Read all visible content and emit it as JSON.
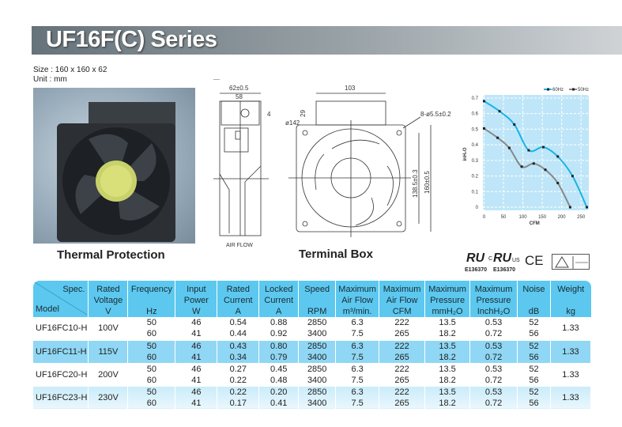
{
  "header": {
    "title": "UF16F(C) Series",
    "size": "Size : 160 x 160 x 62",
    "unit": "Unit : mm"
  },
  "photo": {
    "caption": "Thermal Protection"
  },
  "drawing": {
    "caption": "Terminal Box",
    "air_flow": "AIR FLOW",
    "dims": {
      "depth": "62±0.5",
      "depth_inner": "58",
      "flange": "4",
      "box_width": "103",
      "box_height": "29",
      "diameter": "ø142",
      "holes": "8-ø5.5±0.2",
      "hole_pitch": "138.5±0.3",
      "size": "160±0.5"
    }
  },
  "certifications": {
    "ul_number": "E136370",
    "cul_number": "E136370",
    "cul_prefix": "C",
    "cul_suffix": "US",
    "ce": "CE"
  },
  "chart_data": {
    "type": "line",
    "xlabel": "CFM",
    "ylabel": "inH₂O",
    "xlim": [
      0,
      265
    ],
    "ylim": [
      0,
      0.7
    ],
    "xticks": [
      0,
      50,
      100,
      150,
      200,
      250
    ],
    "yticks": [
      0.0,
      0.1,
      0.2,
      0.3,
      0.4,
      0.5,
      0.6,
      0.7
    ],
    "grid": true,
    "legend": "top-right",
    "series": [
      {
        "name": "60Hz",
        "color": "#18b4e8",
        "x": [
          0,
          40,
          78,
          115,
          153,
          190,
          228,
          265
        ],
        "y": [
          0.68,
          0.615,
          0.53,
          0.365,
          0.385,
          0.325,
          0.2,
          0
        ]
      },
      {
        "name": "50Hz",
        "color": "#888888",
        "x": [
          0,
          35,
          65,
          97,
          128,
          158,
          190,
          222
        ],
        "y": [
          0.505,
          0.445,
          0.38,
          0.26,
          0.28,
          0.24,
          0.155,
          0
        ]
      }
    ]
  },
  "table": {
    "corner_spec": "Spec.",
    "corner_model": "Model",
    "headers": [
      [
        "Rated",
        "Voltage",
        "V"
      ],
      [
        "Frequency",
        "",
        "Hz"
      ],
      [
        "Input",
        "Power",
        "W"
      ],
      [
        "Rated",
        "Current",
        "A"
      ],
      [
        "Locked",
        "Current",
        "A"
      ],
      [
        "Speed",
        "",
        "RPM"
      ],
      [
        "Maximum",
        "Air Flow",
        "m³/min."
      ],
      [
        "Maximum",
        "Air Flow",
        "CFM"
      ],
      [
        "Maximum",
        "Pressure",
        "mmH₂O"
      ],
      [
        "Maximum",
        "Pressure",
        "InchH₂O"
      ],
      [
        "Noise",
        "",
        "dB"
      ],
      [
        "Weight",
        "",
        "kg"
      ]
    ],
    "rows": [
      {
        "model": "UF16FC10-H",
        "voltage": "100V",
        "freq": [
          "50",
          "60"
        ],
        "power": [
          "46",
          "41"
        ],
        "rated": [
          "0.54",
          "0.44"
        ],
        "locked": [
          "0.88",
          "0.92"
        ],
        "rpm": [
          "2850",
          "3400"
        ],
        "m3": [
          "6.3",
          "7.5"
        ],
        "cfm": [
          "222",
          "265"
        ],
        "mm": [
          "13.5",
          "18.2"
        ],
        "inch": [
          "0.53",
          "0.72"
        ],
        "db": [
          "52",
          "56"
        ],
        "kg": "1.33"
      },
      {
        "model": "UF16FC11-H",
        "voltage": "115V",
        "freq": [
          "50",
          "60"
        ],
        "power": [
          "46",
          "41"
        ],
        "rated": [
          "0.43",
          "0.34"
        ],
        "locked": [
          "0.80",
          "0.79"
        ],
        "rpm": [
          "2850",
          "3400"
        ],
        "m3": [
          "6.3",
          "7.5"
        ],
        "cfm": [
          "222",
          "265"
        ],
        "mm": [
          "13.5",
          "18.2"
        ],
        "inch": [
          "0.53",
          "0.72"
        ],
        "db": [
          "52",
          "56"
        ],
        "kg": "1.33"
      },
      {
        "model": "UF16FC20-H",
        "voltage": "200V",
        "freq": [
          "50",
          "60"
        ],
        "power": [
          "46",
          "41"
        ],
        "rated": [
          "0.27",
          "0.22"
        ],
        "locked": [
          "0.45",
          "0.48"
        ],
        "rpm": [
          "2850",
          "3400"
        ],
        "m3": [
          "6.3",
          "7.5"
        ],
        "cfm": [
          "222",
          "265"
        ],
        "mm": [
          "13.5",
          "18.2"
        ],
        "inch": [
          "0.53",
          "0.72"
        ],
        "db": [
          "52",
          "56"
        ],
        "kg": "1.33"
      },
      {
        "model": "UF16FC23-H",
        "voltage": "230V",
        "freq": [
          "50",
          "60"
        ],
        "power": [
          "46",
          "41"
        ],
        "rated": [
          "0.22",
          "0.17"
        ],
        "locked": [
          "0.20",
          "0.41"
        ],
        "rpm": [
          "2850",
          "3400"
        ],
        "m3": [
          "6.3",
          "7.5"
        ],
        "cfm": [
          "222",
          "265"
        ],
        "mm": [
          "13.5",
          "18.2"
        ],
        "inch": [
          "0.53",
          "0.72"
        ],
        "db": [
          "52",
          "56"
        ],
        "kg": "1.33"
      }
    ]
  }
}
